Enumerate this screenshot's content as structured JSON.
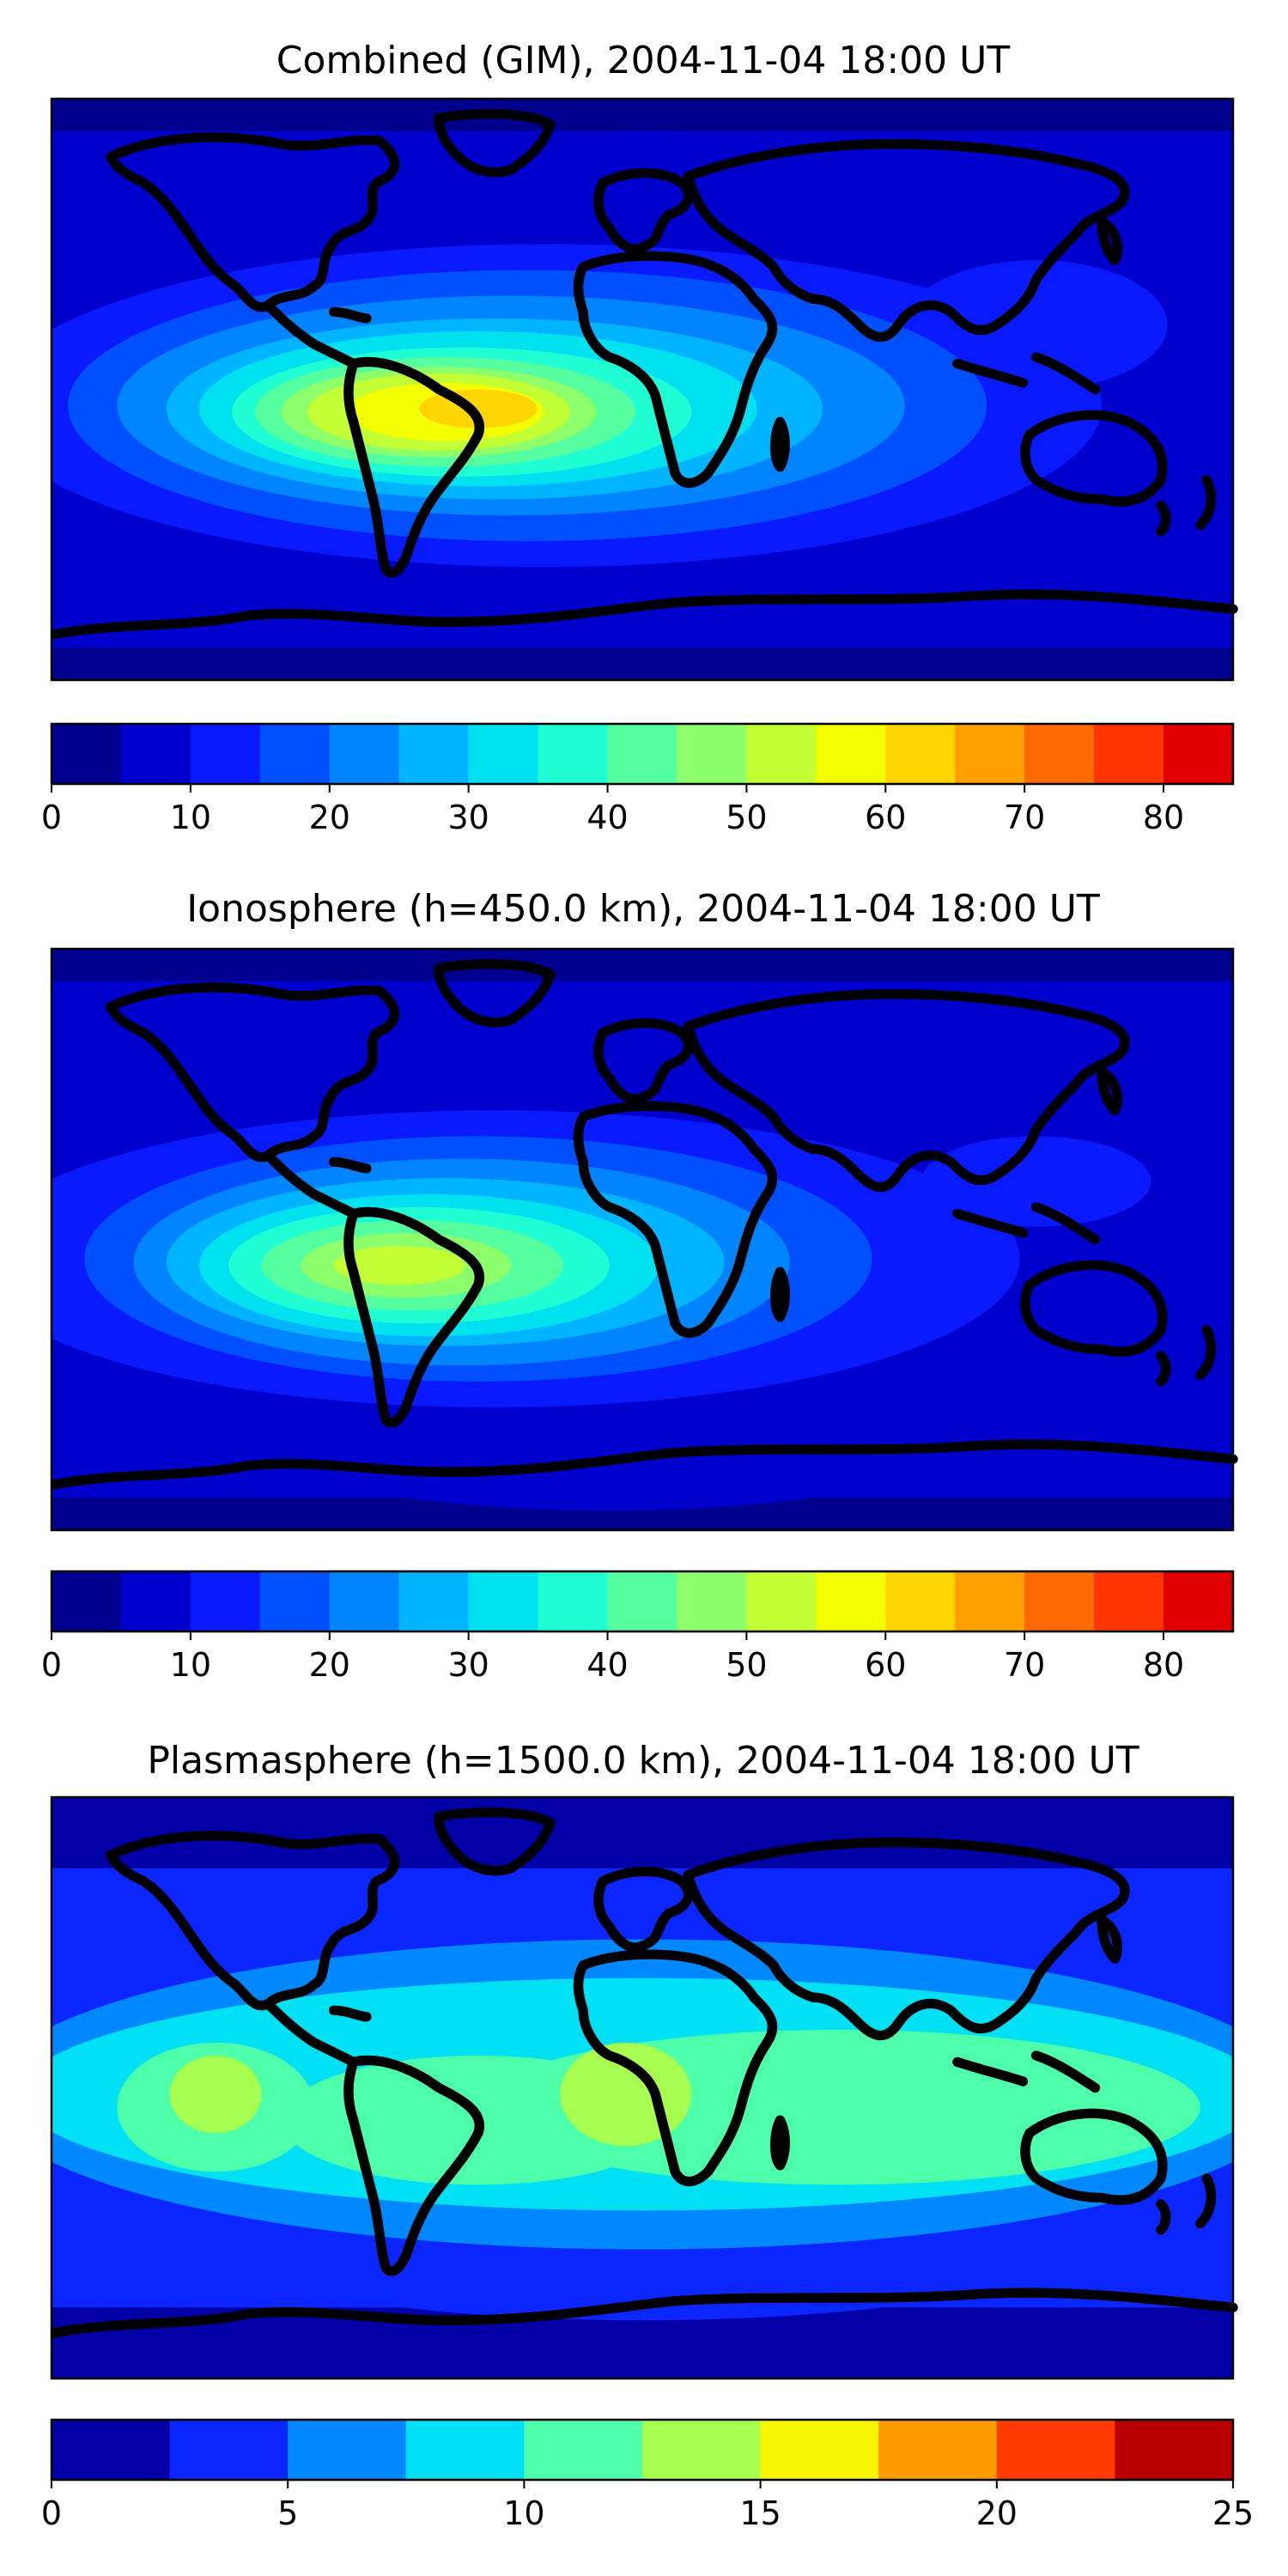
{
  "chart_data": [
    {
      "type": "heatmap",
      "title": "Combined (GIM), 2004-11-04 18:00 UT",
      "variant": "combined",
      "colorbar": {
        "levels": [
          0,
          5,
          10,
          15,
          20,
          25,
          30,
          35,
          40,
          45,
          50,
          55,
          60,
          65,
          70,
          75,
          80,
          85
        ],
        "colors": [
          "#00008f",
          "#0000cc",
          "#0a1aff",
          "#0050ff",
          "#0084ff",
          "#00b4ff",
          "#00e1f0",
          "#20ffd4",
          "#55ff9f",
          "#8cff6a",
          "#c2ff35",
          "#f2ff00",
          "#ffd500",
          "#ffa000",
          "#ff6a00",
          "#ff3500",
          "#e00000",
          "#9a0000"
        ],
        "ticks": [
          0,
          10,
          20,
          30,
          40,
          50,
          60,
          70,
          80
        ],
        "range": [
          0,
          85
        ]
      },
      "peak_center": "South America / South Atlantic",
      "peak_value_approx": 62
    },
    {
      "type": "heatmap",
      "title": "Ionosphere  (h=450.0 km), 2004-11-04 18:00 UT",
      "variant": "ionosphere",
      "colorbar": {
        "levels": [
          0,
          5,
          10,
          15,
          20,
          25,
          30,
          35,
          40,
          45,
          50,
          55,
          60,
          65,
          70,
          75,
          80,
          85
        ],
        "colors": [
          "#00008f",
          "#0000cc",
          "#0a1aff",
          "#0050ff",
          "#0084ff",
          "#00b4ff",
          "#00e1f0",
          "#20ffd4",
          "#55ff9f",
          "#8cff6a",
          "#c2ff35",
          "#f2ff00",
          "#ffd500",
          "#ffa000",
          "#ff6a00",
          "#ff3500",
          "#e00000",
          "#9a0000"
        ],
        "ticks": [
          0,
          10,
          20,
          30,
          40,
          50,
          60,
          70,
          80
        ],
        "range": [
          0,
          85
        ]
      },
      "peak_center": "South America",
      "peak_value_approx": 48
    },
    {
      "type": "heatmap",
      "title": "Plasmasphere (h=1500.0 km), 2004-11-04 18:00 UT",
      "variant": "plasmasphere",
      "colorbar": {
        "levels": [
          0,
          2.5,
          5,
          7.5,
          10,
          12.5,
          15,
          17.5,
          20,
          22.5,
          25
        ],
        "colors": [
          "#0000a6",
          "#0c26ff",
          "#0088ff",
          "#00e0f4",
          "#4dffa8",
          "#a6ff4f",
          "#f8f500",
          "#ff9b00",
          "#ff3c00",
          "#b80000"
        ],
        "ticks": [
          0,
          5,
          10,
          15,
          20,
          25
        ],
        "range": [
          0,
          25
        ]
      },
      "peak_center": "Equatorial band (Pacific, Africa)",
      "peak_value_approx": 13
    }
  ]
}
